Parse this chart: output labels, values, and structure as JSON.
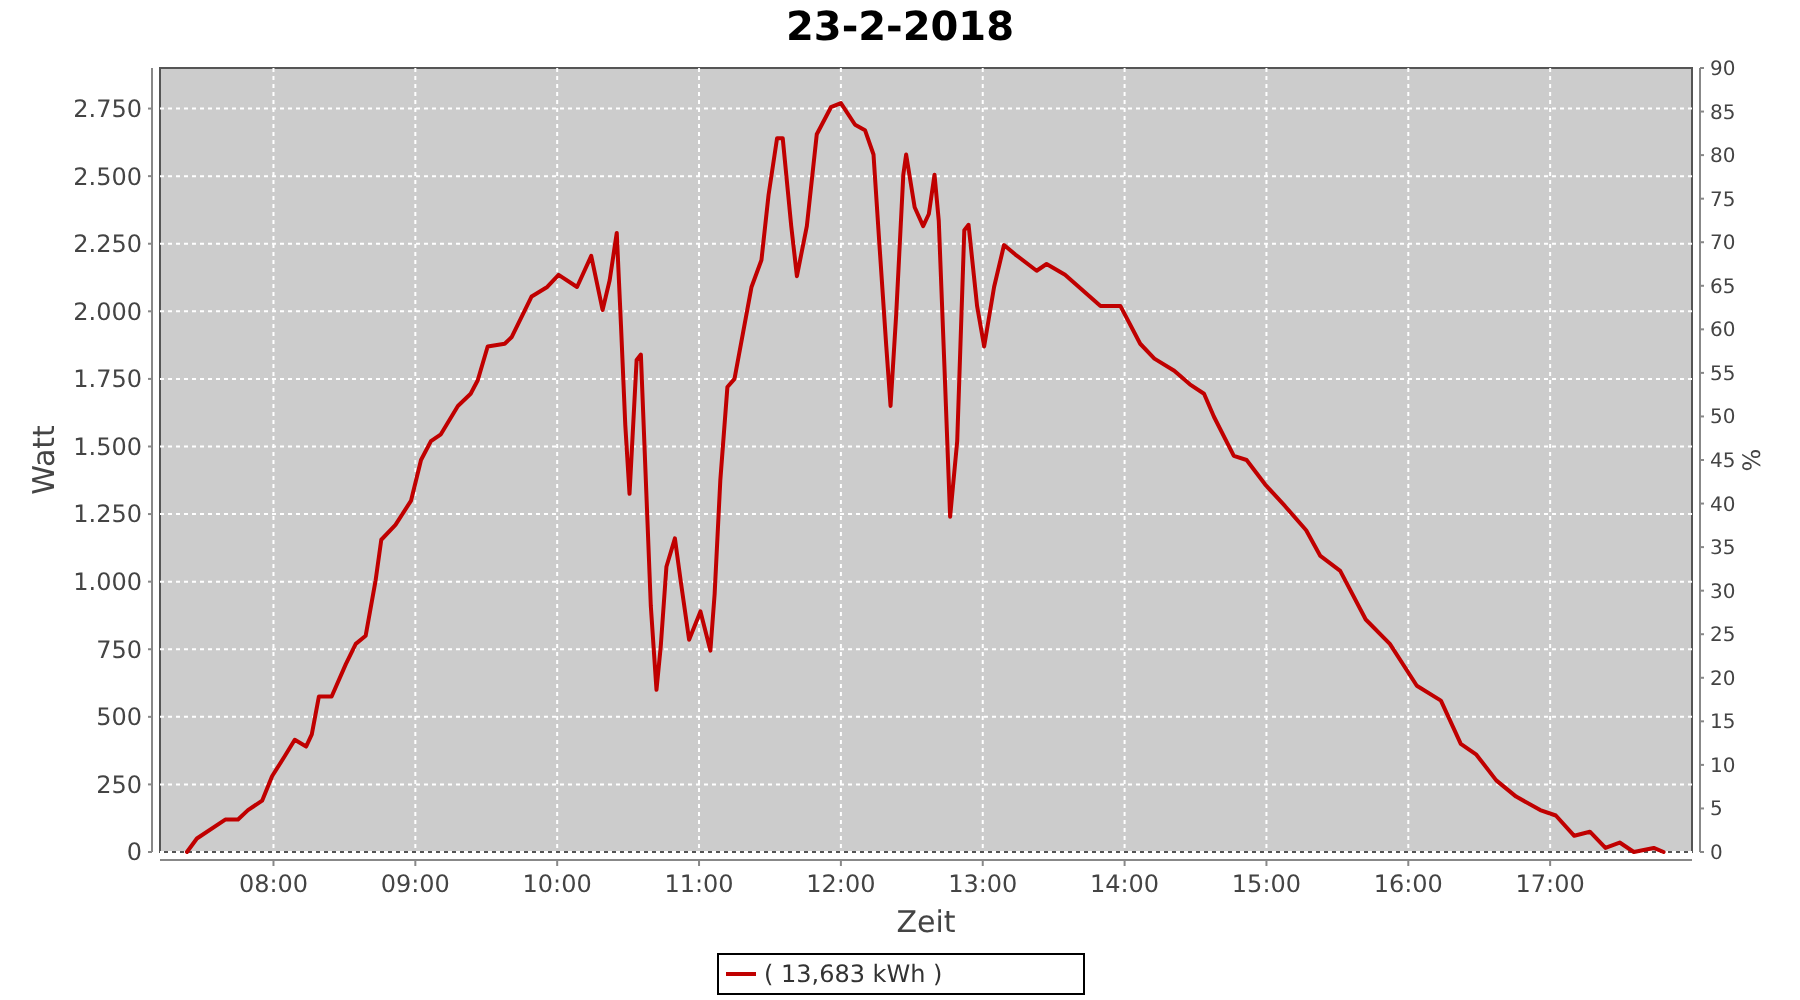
{
  "chart_data": {
    "type": "line",
    "title": "23-2-2018",
    "xlabel": "Zeit",
    "ylabel": "Watt",
    "y2label": "%",
    "xlim": [
      7.2,
      18.0
    ],
    "xticks": [
      {
        "value": 8,
        "label": "08:00"
      },
      {
        "value": 9,
        "label": "09:00"
      },
      {
        "value": 10,
        "label": "10:00"
      },
      {
        "value": 11,
        "label": "11:00"
      },
      {
        "value": 12,
        "label": "12:00"
      },
      {
        "value": 13,
        "label": "13:00"
      },
      {
        "value": 14,
        "label": "14:00"
      },
      {
        "value": 15,
        "label": "15:00"
      },
      {
        "value": 16,
        "label": "16:00"
      },
      {
        "value": 17,
        "label": "17:00"
      }
    ],
    "ylim": [
      0,
      2900
    ],
    "yticks": [
      0,
      250,
      500,
      750,
      {
        "value": 1000,
        "label": "1.000"
      },
      {
        "value": 1250,
        "label": "1.250"
      },
      {
        "value": 1500,
        "label": "1.500"
      },
      {
        "value": 1750,
        "label": "1.750"
      },
      {
        "value": 2000,
        "label": "2.000"
      },
      {
        "value": 2250,
        "label": "2.250"
      },
      {
        "value": 2500,
        "label": "2.500"
      },
      {
        "value": 2750,
        "label": "2.750"
      }
    ],
    "y2lim": [
      0,
      90
    ],
    "y2ticks": [
      0,
      5,
      10,
      15,
      20,
      25,
      30,
      35,
      40,
      45,
      50,
      55,
      60,
      65,
      70,
      75,
      80,
      85,
      90
    ],
    "grid": true,
    "legend": "bottom",
    "marker": "none",
    "line_style": "solid",
    "series": [
      {
        "name": "( 13,683 kWh )",
        "color": "#c00000",
        "x": [
          7.39,
          7.46,
          7.66,
          7.75,
          7.82,
          7.92,
          7.99,
          8.08,
          8.15,
          8.23,
          8.27,
          8.32,
          8.41,
          8.51,
          8.58,
          8.65,
          8.72,
          8.76,
          8.86,
          8.97,
          9.04,
          9.11,
          9.18,
          9.3,
          9.39,
          9.44,
          9.51,
          9.63,
          9.68,
          9.82,
          9.93,
          10.01,
          10.14,
          10.24,
          10.32,
          10.37,
          10.42,
          10.45,
          10.48,
          10.51,
          10.56,
          10.59,
          10.66,
          10.7,
          10.73,
          10.77,
          10.83,
          10.87,
          10.93,
          11.01,
          11.08,
          11.11,
          11.15,
          11.2,
          11.25,
          11.37,
          11.44,
          11.49,
          11.55,
          11.59,
          11.65,
          11.69,
          11.76,
          11.83,
          11.93,
          12.0,
          12.1,
          12.17,
          12.23,
          12.27,
          12.32,
          12.35,
          12.39,
          12.44,
          12.46,
          12.52,
          12.58,
          12.62,
          12.66,
          12.69,
          12.73,
          12.77,
          12.82,
          12.87,
          12.9,
          12.96,
          13.01,
          13.08,
          13.15,
          13.23,
          13.38,
          13.45,
          13.58,
          13.83,
          13.97,
          14.11,
          14.21,
          14.35,
          14.46,
          14.56,
          14.63,
          14.77,
          14.86,
          14.99,
          15.13,
          15.28,
          15.38,
          15.52,
          15.7,
          15.87,
          16.06,
          16.23,
          16.37,
          16.48,
          16.62,
          16.76,
          16.93,
          17.04,
          17.17,
          17.28,
          17.39,
          17.49,
          17.59,
          17.73,
          17.8
        ],
        "values": [
          0,
          50,
          120,
          120,
          155,
          190,
          280,
          355,
          415,
          390,
          435,
          575,
          575,
          695,
          770,
          800,
          1005,
          1155,
          1210,
          1300,
          1450,
          1520,
          1545,
          1650,
          1695,
          1745,
          1870,
          1880,
          1905,
          2055,
          2090,
          2135,
          2090,
          2205,
          2005,
          2115,
          2290,
          1945,
          1580,
          1325,
          1820,
          1840,
          910,
          600,
          760,
          1055,
          1160,
          1005,
          785,
          890,
          745,
          955,
          1375,
          1720,
          1750,
          2090,
          2190,
          2430,
          2640,
          2640,
          2315,
          2130,
          2315,
          2655,
          2755,
          2770,
          2690,
          2670,
          2580,
          2260,
          1870,
          1650,
          1990,
          2505,
          2580,
          2385,
          2315,
          2360,
          2505,
          2335,
          1795,
          1240,
          1520,
          2300,
          2320,
          2020,
          1870,
          2090,
          2245,
          2210,
          2150,
          2175,
          2135,
          2020,
          2020,
          1880,
          1825,
          1780,
          1730,
          1695,
          1610,
          1465,
          1450,
          1360,
          1280,
          1190,
          1095,
          1040,
          860,
          770,
          615,
          560,
          400,
          360,
          265,
          205,
          155,
          135,
          60,
          75,
          15,
          35,
          0,
          15,
          0
        ]
      }
    ]
  }
}
